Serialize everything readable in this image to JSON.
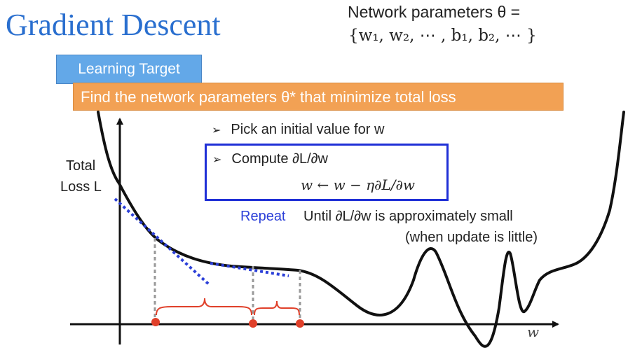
{
  "slide": {
    "title": "Gradient Descent",
    "params_line1": "Network parameters θ =",
    "params_line2": "{w₁, w₂, ⋯ , b₁, b₂, ⋯ }"
  },
  "learning_target": {
    "label": "Learning Target",
    "goal": "Find the network parameters θ* that minimize total loss"
  },
  "steps": {
    "step1": "Pick an initial value for w",
    "step2": "Compute ∂L/∂w",
    "update_rule": "w ← w − η∂L/∂w",
    "repeat_label": "Repeat",
    "until_text": "Until ∂L/∂w is approximately small",
    "note": "(when update is little)"
  },
  "axes": {
    "ylabel_line1": "Total",
    "ylabel_line2": "Loss L",
    "xlabel": "w"
  },
  "colors": {
    "title": "#2a6fcf",
    "learning_target_bg": "#63a8e8",
    "goal_bg": "#f2a154",
    "compute_box_border": "#1f2fd6",
    "tangent": "#2b3fd8",
    "points": "#e0402a",
    "braces": "#e0402a",
    "guides": "#999999"
  },
  "points_count": 3
}
